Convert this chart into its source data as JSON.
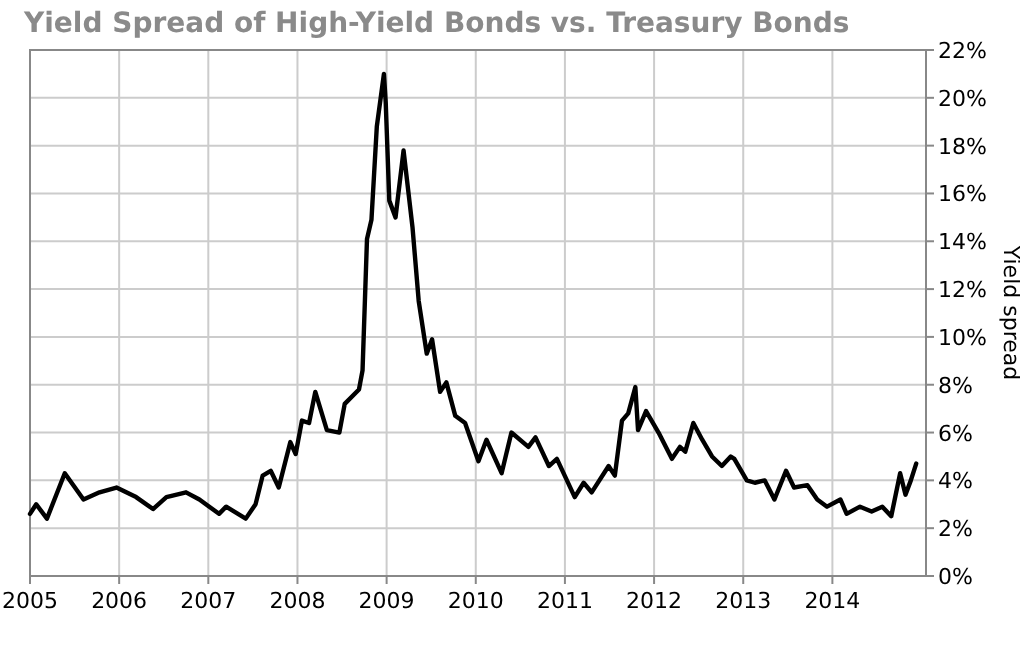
{
  "chart_data": {
    "type": "line",
    "title": "Yield Spread of High-Yield Bonds vs. Treasury Bonds",
    "ylabel": "Yield spread",
    "x": [
      2005.0,
      2005.07,
      2005.19,
      2005.39,
      2005.6,
      2005.78,
      2005.97,
      2006.19,
      2006.38,
      2006.53,
      2006.75,
      2006.9,
      2007.12,
      2007.2,
      2007.42,
      2007.53,
      2007.61,
      2007.7,
      2007.79,
      2007.92,
      2007.98,
      2008.05,
      2008.13,
      2008.2,
      2008.33,
      2008.47,
      2008.53,
      2008.69,
      2008.73,
      2008.78,
      2008.83,
      2008.89,
      2008.97,
      2008.99,
      2009.03,
      2009.1,
      2009.19,
      2009.29,
      2009.36,
      2009.45,
      2009.51,
      2009.6,
      2009.67,
      2009.77,
      2009.88,
      2010.03,
      2010.12,
      2010.29,
      2010.4,
      2010.59,
      2010.67,
      2010.82,
      2010.91,
      2011.11,
      2011.21,
      2011.3,
      2011.49,
      2011.56,
      2011.64,
      2011.71,
      2011.79,
      2011.82,
      2011.91,
      2012.05,
      2012.2,
      2012.29,
      2012.35,
      2012.44,
      2012.54,
      2012.65,
      2012.76,
      2012.86,
      2012.9,
      2013.04,
      2013.13,
      2013.24,
      2013.35,
      2013.48,
      2013.57,
      2013.72,
      2013.83,
      2013.94,
      2014.09,
      2014.16,
      2014.31,
      2014.44,
      2014.56,
      2014.66,
      2014.76,
      2014.82,
      2014.88,
      2014.94
    ],
    "series": [
      {
        "color": "#000000",
        "values": [
          2.6,
          3.0,
          2.4,
          4.3,
          3.2,
          3.5,
          3.7,
          3.3,
          2.8,
          3.3,
          3.5,
          3.2,
          2.6,
          2.9,
          2.4,
          3.0,
          4.2,
          4.4,
          3.7,
          5.6,
          5.1,
          6.5,
          6.4,
          7.7,
          6.1,
          6.0,
          7.2,
          7.8,
          8.6,
          14.1,
          14.9,
          18.8,
          21.0,
          19.8,
          15.7,
          15.0,
          17.8,
          14.6,
          11.5,
          9.3,
          9.9,
          7.7,
          8.1,
          6.7,
          6.4,
          4.8,
          5.7,
          4.3,
          6.0,
          5.4,
          5.8,
          4.6,
          4.9,
          3.3,
          3.9,
          3.5,
          4.6,
          4.2,
          6.5,
          6.8,
          7.9,
          6.1,
          6.9,
          6.0,
          4.9,
          5.4,
          5.2,
          6.4,
          5.7,
          5.0,
          4.6,
          5.0,
          4.9,
          4.0,
          3.9,
          4.0,
          3.2,
          4.4,
          3.7,
          3.8,
          3.2,
          2.9,
          3.2,
          2.6,
          2.9,
          2.7,
          2.9,
          2.5,
          4.3,
          3.4,
          4.0,
          4.7
        ]
      }
    ],
    "xlim": [
      2005,
      2015.05
    ],
    "xticks": [
      2005,
      2006,
      2007,
      2008,
      2009,
      2010,
      2011,
      2012,
      2013,
      2014
    ],
    "ylim": [
      0,
      22
    ],
    "yticks": [
      {
        "value": 0,
        "label": "0%"
      },
      {
        "value": 2,
        "label": "2%"
      },
      {
        "value": 4,
        "label": "4%"
      },
      {
        "value": 6,
        "label": "6%"
      },
      {
        "value": 8,
        "label": "8%"
      },
      {
        "value": 10,
        "label": "10%"
      },
      {
        "value": 12,
        "label": "12%"
      },
      {
        "value": 14,
        "label": "14%"
      },
      {
        "value": 16,
        "label": "16%"
      },
      {
        "value": 18,
        "label": "18%"
      },
      {
        "value": 20,
        "label": "20%"
      },
      {
        "value": 22,
        "label": "22%"
      }
    ],
    "grid": true,
    "marker": "none",
    "line_style": "solid"
  }
}
